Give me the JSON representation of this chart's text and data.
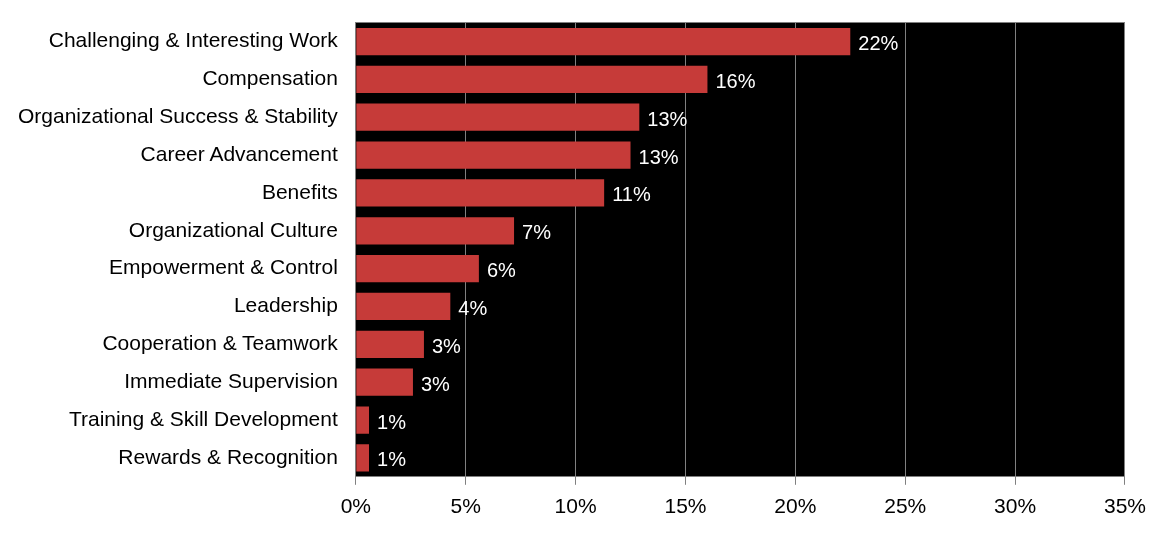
{
  "chart_data": {
    "type": "bar",
    "orientation": "horizontal",
    "categories": [
      "Challenging & Interesting Work",
      "Compensation",
      "Organizational Success & Stability",
      "Career Advancement",
      "Benefits",
      "Organizational Culture",
      "Empowerment & Control",
      "Leadership",
      "Cooperation & Teamwork",
      "Immediate Supervision",
      "Training & Skill Development",
      "Rewards & Recognition"
    ],
    "values": [
      22.5,
      16.0,
      12.9,
      12.5,
      11.3,
      7.2,
      5.6,
      4.3,
      3.1,
      2.6,
      0.6,
      0.6
    ],
    "value_labels": [
      "22%",
      "16%",
      "13%",
      "13%",
      "11%",
      "7%",
      "6%",
      "4%",
      "3%",
      "3%",
      "1%",
      "1%"
    ],
    "color": "#c63b39",
    "xlim": [
      0,
      35
    ],
    "xticks": [
      {
        "value": 0,
        "label": "0%"
      },
      {
        "value": 5,
        "label": "5%"
      },
      {
        "value": 10,
        "label": "10%"
      },
      {
        "value": 15,
        "label": "15%"
      },
      {
        "value": 20,
        "label": "20%"
      },
      {
        "value": 25,
        "label": "25%"
      },
      {
        "value": 30,
        "label": "30%"
      },
      {
        "value": 35,
        "label": "35%"
      }
    ],
    "grid": "x",
    "legend": false
  }
}
